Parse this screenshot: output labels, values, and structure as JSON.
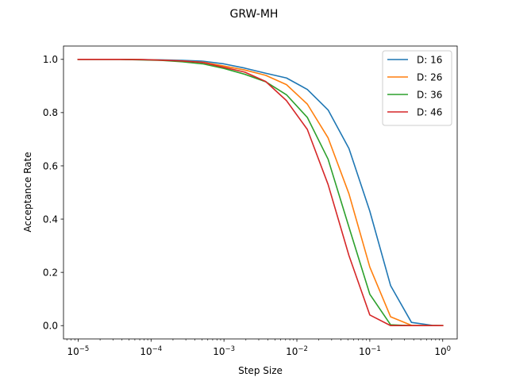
{
  "chart_data": {
    "type": "line",
    "title": "GRW-MH",
    "xlabel": "Step Size",
    "ylabel": "Acceptance Rate",
    "xscale": "log",
    "xlim": [
      6.3e-06,
      1.58
    ],
    "ylim": [
      -0.05,
      1.05
    ],
    "x_ticks": [
      {
        "value": 1e-05,
        "base": "10",
        "exp": "−5"
      },
      {
        "value": 0.0001,
        "base": "10",
        "exp": "−4"
      },
      {
        "value": 0.001,
        "base": "10",
        "exp": "−3"
      },
      {
        "value": 0.01,
        "base": "10",
        "exp": "−2"
      },
      {
        "value": 0.1,
        "base": "10",
        "exp": "−1"
      },
      {
        "value": 1,
        "base": "10",
        "exp": "0"
      }
    ],
    "y_ticks": [
      "0.0",
      "0.2",
      "0.4",
      "0.6",
      "0.8",
      "1.0"
    ],
    "grid": false,
    "legend_position": "top-right",
    "x": [
      1e-05,
      1.93e-05,
      3.73e-05,
      7.2e-05,
      0.000139,
      0.000268,
      0.000518,
      0.001,
      0.00193,
      0.00373,
      0.0072,
      0.0139,
      0.0268,
      0.0518,
      0.1,
      0.193,
      0.373,
      0.72,
      1
    ],
    "series": [
      {
        "name": "D: 16",
        "color": "#1f77b4",
        "values": [
          1.0,
          1.0,
          1.0,
          0.999,
          0.998,
          0.996,
          0.993,
          0.983,
          0.967,
          0.948,
          0.93,
          0.887,
          0.81,
          0.665,
          0.43,
          0.15,
          0.012,
          0.001,
          0.0
        ]
      },
      {
        "name": "D: 26",
        "color": "#ff7f0e",
        "values": [
          1.0,
          1.0,
          1.0,
          0.999,
          0.997,
          0.994,
          0.989,
          0.975,
          0.96,
          0.94,
          0.905,
          0.832,
          0.705,
          0.495,
          0.22,
          0.033,
          0.001,
          0.0,
          0.0
        ]
      },
      {
        "name": "D: 36",
        "color": "#2ca02c",
        "values": [
          1.0,
          1.0,
          1.0,
          0.998,
          0.996,
          0.991,
          0.983,
          0.966,
          0.944,
          0.916,
          0.867,
          0.782,
          0.625,
          0.37,
          0.118,
          0.003,
          0.0,
          0.0,
          0.0
        ]
      },
      {
        "name": "D: 46",
        "color": "#d62728",
        "values": [
          1.0,
          1.0,
          1.0,
          0.999,
          0.997,
          0.994,
          0.988,
          0.97,
          0.952,
          0.917,
          0.845,
          0.737,
          0.53,
          0.263,
          0.04,
          0.0,
          0.0,
          0.0,
          0.0
        ]
      }
    ]
  }
}
